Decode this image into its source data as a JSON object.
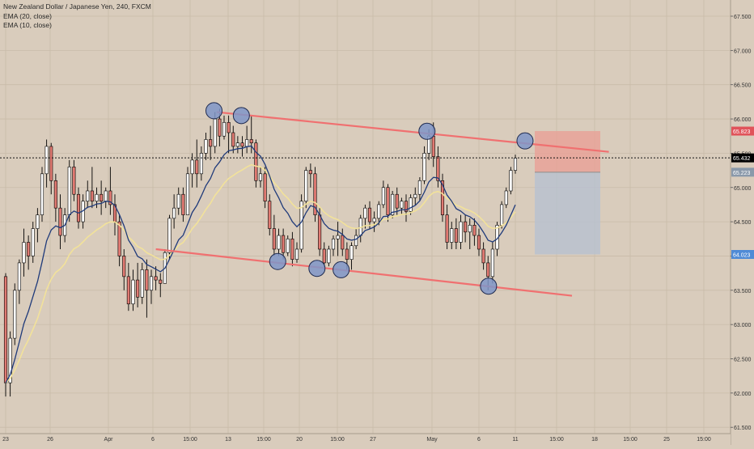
{
  "legend": {
    "symbol": "New Zealand Dollar / Japanese Yen, 240, FXCM",
    "ema20": "EMA (20, close)",
    "ema10": "EMA (10, close)"
  },
  "colors": {
    "background": "#d9ccbc",
    "grid": "#c9bba9",
    "candle_up": "#ffffff",
    "candle_down": "#e07a72",
    "candle_border": "#000000",
    "ema20": "#f2e29a",
    "ema10": "#1f3a7a",
    "trendline": "#f07070",
    "pivot_circle": "#7f95c8",
    "stop_zone": "#e8a096",
    "target_zone": "#b7c1d0",
    "price_tag_current": "#000000",
    "price_tag_stop": "#e0535a",
    "price_tag_entry": "#8a99aa",
    "price_tag_target": "#4f8bd6"
  },
  "chart_data": {
    "type": "candlestick",
    "title": "New Zealand Dollar / Japanese Yen, 240, FXCM",
    "ylim": [
      61.5,
      67.65
    ],
    "y_ticks": [
      "67.500",
      "67.000",
      "66.500",
      "66.000",
      "65.500",
      "65.000",
      "64.500",
      "64.000",
      "63.500",
      "63.000",
      "62.500",
      "62.000",
      "61.500"
    ],
    "x_ticks": [
      "23",
      "26",
      "Apr",
      "6",
      "15:00",
      "13",
      "15:00",
      "20",
      "15:00",
      "27",
      "May",
      "6",
      "11",
      "15:00",
      "18",
      "15:00",
      "25",
      "15:00"
    ],
    "grid": true,
    "series": [
      {
        "name": "EMA (20, close)",
        "kind": "line"
      },
      {
        "name": "EMA (10, close)",
        "kind": "line"
      }
    ],
    "candles": [
      {
        "o": 63.7,
        "h": 63.75,
        "c": 62.15,
        "l": 61.95
      },
      {
        "o": 62.15,
        "h": 62.9,
        "c": 62.8,
        "l": 61.95
      },
      {
        "o": 62.8,
        "h": 63.6,
        "c": 63.5,
        "l": 62.7
      },
      {
        "o": 63.5,
        "h": 63.95,
        "c": 63.9,
        "l": 63.3
      },
      {
        "o": 63.9,
        "h": 64.4,
        "c": 64.2,
        "l": 63.7
      },
      {
        "o": 64.2,
        "h": 64.3,
        "c": 64.0,
        "l": 63.8
      },
      {
        "o": 64.0,
        "h": 64.5,
        "c": 64.4,
        "l": 63.9
      },
      {
        "o": 64.4,
        "h": 64.7,
        "c": 64.6,
        "l": 64.2
      },
      {
        "o": 64.6,
        "h": 65.3,
        "c": 65.2,
        "l": 64.5
      },
      {
        "o": 65.2,
        "h": 65.7,
        "c": 65.6,
        "l": 65.0
      },
      {
        "o": 65.6,
        "h": 65.65,
        "c": 65.1,
        "l": 64.9
      },
      {
        "o": 65.1,
        "h": 65.2,
        "c": 64.7,
        "l": 64.5
      },
      {
        "o": 64.7,
        "h": 64.9,
        "c": 64.3,
        "l": 64.1
      },
      {
        "o": 64.3,
        "h": 64.7,
        "c": 64.6,
        "l": 64.2
      },
      {
        "o": 64.6,
        "h": 65.4,
        "c": 65.3,
        "l": 64.5
      },
      {
        "o": 65.3,
        "h": 65.4,
        "c": 64.9,
        "l": 64.8
      },
      {
        "o": 64.9,
        "h": 65.0,
        "c": 64.5,
        "l": 64.4
      },
      {
        "o": 64.5,
        "h": 64.9,
        "c": 64.8,
        "l": 64.4
      },
      {
        "o": 64.8,
        "h": 65.1,
        "c": 64.95,
        "l": 64.7
      },
      {
        "o": 64.95,
        "h": 65.3,
        "c": 64.8,
        "l": 64.7
      },
      {
        "o": 64.8,
        "h": 65.0,
        "c": 64.9,
        "l": 64.7
      },
      {
        "o": 64.9,
        "h": 65.1,
        "c": 64.8,
        "l": 64.6
      },
      {
        "o": 64.8,
        "h": 65.0,
        "c": 64.95,
        "l": 64.7
      },
      {
        "o": 64.95,
        "h": 65.3,
        "c": 64.75,
        "l": 64.6
      },
      {
        "o": 64.75,
        "h": 64.9,
        "c": 64.5,
        "l": 64.3
      },
      {
        "o": 64.5,
        "h": 64.6,
        "c": 64.0,
        "l": 63.85
      },
      {
        "o": 64.0,
        "h": 64.1,
        "c": 63.7,
        "l": 63.5
      },
      {
        "o": 63.7,
        "h": 63.9,
        "c": 63.3,
        "l": 63.2
      },
      {
        "o": 63.3,
        "h": 63.8,
        "c": 63.65,
        "l": 63.2
      },
      {
        "o": 63.65,
        "h": 63.9,
        "c": 63.4,
        "l": 63.25
      },
      {
        "o": 63.4,
        "h": 63.9,
        "c": 63.8,
        "l": 63.3
      },
      {
        "o": 63.8,
        "h": 63.95,
        "c": 63.5,
        "l": 63.1
      },
      {
        "o": 63.5,
        "h": 63.8,
        "c": 63.7,
        "l": 63.3
      },
      {
        "o": 63.7,
        "h": 63.85,
        "c": 63.65,
        "l": 63.5
      },
      {
        "o": 63.65,
        "h": 63.75,
        "c": 63.6,
        "l": 63.4
      },
      {
        "o": 63.6,
        "h": 64.1,
        "c": 64.05,
        "l": 63.6
      },
      {
        "o": 64.05,
        "h": 64.6,
        "c": 64.55,
        "l": 63.95
      },
      {
        "o": 64.55,
        "h": 64.9,
        "c": 64.7,
        "l": 64.4
      },
      {
        "o": 64.7,
        "h": 65.0,
        "c": 64.9,
        "l": 64.6
      },
      {
        "o": 64.9,
        "h": 65.0,
        "c": 64.6,
        "l": 64.5
      },
      {
        "o": 64.6,
        "h": 65.3,
        "c": 65.2,
        "l": 64.6
      },
      {
        "o": 65.2,
        "h": 65.5,
        "c": 65.4,
        "l": 65.0
      },
      {
        "o": 65.4,
        "h": 65.7,
        "c": 65.2,
        "l": 65.0
      },
      {
        "o": 65.2,
        "h": 65.6,
        "c": 65.5,
        "l": 65.1
      },
      {
        "o": 65.5,
        "h": 65.8,
        "c": 65.7,
        "l": 65.4
      },
      {
        "o": 65.7,
        "h": 65.9,
        "c": 65.6,
        "l": 65.4
      },
      {
        "o": 65.6,
        "h": 66.1,
        "c": 66.0,
        "l": 65.5
      },
      {
        "o": 66.0,
        "h": 66.15,
        "c": 65.75,
        "l": 65.6
      },
      {
        "o": 65.75,
        "h": 66.05,
        "c": 65.95,
        "l": 65.7
      },
      {
        "o": 65.95,
        "h": 66.05,
        "c": 65.8,
        "l": 65.5
      },
      {
        "o": 65.8,
        "h": 65.9,
        "c": 65.6,
        "l": 65.5
      },
      {
        "o": 65.6,
        "h": 65.75,
        "c": 65.65,
        "l": 65.5
      },
      {
        "o": 65.65,
        "h": 65.75,
        "c": 65.6,
        "l": 65.45
      },
      {
        "o": 65.6,
        "h": 65.9,
        "c": 65.7,
        "l": 65.5
      },
      {
        "o": 65.7,
        "h": 66.05,
        "c": 65.65,
        "l": 65.5
      },
      {
        "o": 65.65,
        "h": 65.7,
        "c": 65.1,
        "l": 65.0
      },
      {
        "o": 65.1,
        "h": 65.3,
        "c": 65.2,
        "l": 65.0
      },
      {
        "o": 65.2,
        "h": 65.3,
        "c": 64.8,
        "l": 64.7
      },
      {
        "o": 64.8,
        "h": 64.9,
        "c": 64.4,
        "l": 64.3
      },
      {
        "o": 64.4,
        "h": 64.6,
        "c": 64.1,
        "l": 64.0
      },
      {
        "o": 64.1,
        "h": 64.4,
        "c": 64.3,
        "l": 64.0
      },
      {
        "o": 64.3,
        "h": 64.4,
        "c": 64.05,
        "l": 63.95
      },
      {
        "o": 64.05,
        "h": 64.3,
        "c": 64.25,
        "l": 64.0
      },
      {
        "o": 64.25,
        "h": 64.35,
        "c": 63.95,
        "l": 63.85
      },
      {
        "o": 63.95,
        "h": 64.2,
        "c": 64.1,
        "l": 63.9
      },
      {
        "o": 64.1,
        "h": 64.9,
        "c": 64.8,
        "l": 64.05
      },
      {
        "o": 64.8,
        "h": 65.3,
        "c": 65.25,
        "l": 64.7
      },
      {
        "o": 65.25,
        "h": 65.35,
        "c": 65.2,
        "l": 65.0
      },
      {
        "o": 65.2,
        "h": 65.3,
        "c": 64.6,
        "l": 64.5
      },
      {
        "o": 64.6,
        "h": 64.7,
        "c": 64.1,
        "l": 64.0
      },
      {
        "o": 64.1,
        "h": 64.2,
        "c": 63.9,
        "l": 63.8
      },
      {
        "o": 63.9,
        "h": 64.15,
        "c": 64.1,
        "l": 63.85
      },
      {
        "o": 64.1,
        "h": 64.3,
        "c": 64.25,
        "l": 64.0
      },
      {
        "o": 64.25,
        "h": 64.5,
        "c": 64.3,
        "l": 64.0
      },
      {
        "o": 64.3,
        "h": 64.4,
        "c": 64.1,
        "l": 64.0
      },
      {
        "o": 64.1,
        "h": 64.2,
        "c": 63.95,
        "l": 63.8
      },
      {
        "o": 63.95,
        "h": 64.2,
        "c": 64.15,
        "l": 63.8
      },
      {
        "o": 64.15,
        "h": 64.4,
        "c": 64.3,
        "l": 64.1
      },
      {
        "o": 64.3,
        "h": 64.6,
        "c": 64.55,
        "l": 64.2
      },
      {
        "o": 64.55,
        "h": 64.75,
        "c": 64.7,
        "l": 64.4
      },
      {
        "o": 64.7,
        "h": 64.8,
        "c": 64.5,
        "l": 64.4
      },
      {
        "o": 64.5,
        "h": 64.65,
        "c": 64.55,
        "l": 64.35
      },
      {
        "o": 64.55,
        "h": 64.8,
        "c": 64.75,
        "l": 64.45
      },
      {
        "o": 64.75,
        "h": 65.1,
        "c": 65.0,
        "l": 64.7
      },
      {
        "o": 65.0,
        "h": 65.05,
        "c": 64.6,
        "l": 64.5
      },
      {
        "o": 64.6,
        "h": 64.95,
        "c": 64.9,
        "l": 64.55
      },
      {
        "o": 64.9,
        "h": 65.0,
        "c": 64.7,
        "l": 64.6
      },
      {
        "o": 64.7,
        "h": 64.85,
        "c": 64.8,
        "l": 64.6
      },
      {
        "o": 64.8,
        "h": 64.9,
        "c": 64.65,
        "l": 64.5
      },
      {
        "o": 64.65,
        "h": 64.9,
        "c": 64.85,
        "l": 64.6
      },
      {
        "o": 64.85,
        "h": 65.0,
        "c": 64.9,
        "l": 64.75
      },
      {
        "o": 64.9,
        "h": 65.15,
        "c": 65.1,
        "l": 64.8
      },
      {
        "o": 65.1,
        "h": 65.6,
        "c": 65.5,
        "l": 65.05
      },
      {
        "o": 65.5,
        "h": 65.85,
        "c": 65.75,
        "l": 65.4
      },
      {
        "o": 65.75,
        "h": 65.95,
        "c": 65.45,
        "l": 65.3
      },
      {
        "o": 65.45,
        "h": 65.6,
        "c": 65.1,
        "l": 65.0
      },
      {
        "o": 65.1,
        "h": 65.2,
        "c": 64.6,
        "l": 64.5
      },
      {
        "o": 64.6,
        "h": 64.75,
        "c": 64.2,
        "l": 64.1
      },
      {
        "o": 64.2,
        "h": 64.5,
        "c": 64.4,
        "l": 64.1
      },
      {
        "o": 64.4,
        "h": 64.55,
        "c": 64.2,
        "l": 64.1
      },
      {
        "o": 64.2,
        "h": 64.6,
        "c": 64.5,
        "l": 64.1
      },
      {
        "o": 64.5,
        "h": 64.6,
        "c": 64.35,
        "l": 64.2
      },
      {
        "o": 64.35,
        "h": 64.55,
        "c": 64.45,
        "l": 64.1
      },
      {
        "o": 64.45,
        "h": 64.55,
        "c": 64.3,
        "l": 64.15
      },
      {
        "o": 64.3,
        "h": 64.4,
        "c": 64.1,
        "l": 64.0
      },
      {
        "o": 64.1,
        "h": 64.2,
        "c": 63.9,
        "l": 63.8
      },
      {
        "o": 63.9,
        "h": 64.0,
        "c": 63.7,
        "l": 63.5
      },
      {
        "o": 63.7,
        "h": 64.2,
        "c": 64.1,
        "l": 63.6
      },
      {
        "o": 64.1,
        "h": 64.5,
        "c": 64.45,
        "l": 64.0
      },
      {
        "o": 64.45,
        "h": 64.8,
        "c": 64.75,
        "l": 64.4
      },
      {
        "o": 64.75,
        "h": 65.0,
        "c": 64.95,
        "l": 64.7
      },
      {
        "o": 64.95,
        "h": 65.3,
        "c": 65.25,
        "l": 64.9
      },
      {
        "o": 65.25,
        "h": 65.48,
        "c": 65.43,
        "l": 65.2
      }
    ],
    "trendlines": [
      {
        "name": "upper-resistance",
        "points": [
          {
            "x": 0.2873,
            "y": 66.1
          },
          {
            "x": 0.8075,
            "y": 65.52
          }
        ]
      },
      {
        "name": "lower-support",
        "points": [
          {
            "x": 0.2067,
            "y": 64.1
          },
          {
            "x": 0.7586,
            "y": 63.42
          }
        ]
      }
    ],
    "pivots": [
      {
        "x": 0.2838,
        "y": 66.12
      },
      {
        "x": 0.3201,
        "y": 66.05
      },
      {
        "x": 0.3683,
        "y": 63.92
      },
      {
        "x": 0.4204,
        "y": 63.82
      },
      {
        "x": 0.4524,
        "y": 63.8
      },
      {
        "x": 0.5663,
        "y": 65.82
      },
      {
        "x": 0.6479,
        "y": 63.56
      },
      {
        "x": 0.6963,
        "y": 65.68
      }
    ],
    "position": {
      "type": "short",
      "stop_loss": 65.823,
      "entry": 65.223,
      "take_profit": 64.023,
      "current_price": 65.432
    },
    "price_labels": {
      "stop": "65.823",
      "current": "65.432",
      "entry": "65.223",
      "target": "64.023"
    }
  }
}
